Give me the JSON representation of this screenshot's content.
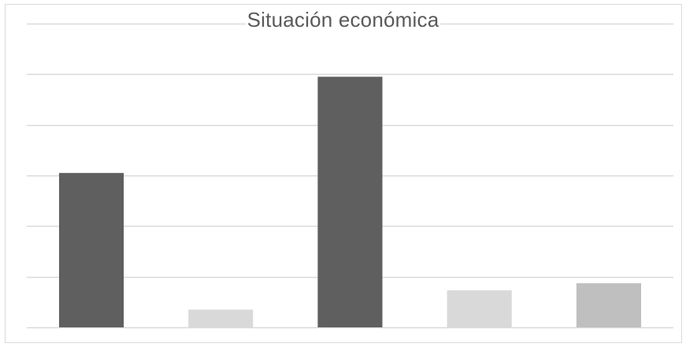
{
  "chart_data": {
    "type": "bar",
    "title": "Situación económica",
    "categories": [
      "",
      "",
      "",
      "",
      ""
    ],
    "values": [
      3.05,
      0.35,
      4.95,
      0.73,
      0.87
    ],
    "bar_colors": [
      "#5f5f5f",
      "#d9d9d9",
      "#5f5f5f",
      "#d9d9d9",
      "#bfbfbf"
    ],
    "ylim": [
      0,
      6
    ],
    "grid": true,
    "gridline_color": "#d9d9d9",
    "xlabel": "",
    "ylabel": "",
    "legend": "none"
  }
}
